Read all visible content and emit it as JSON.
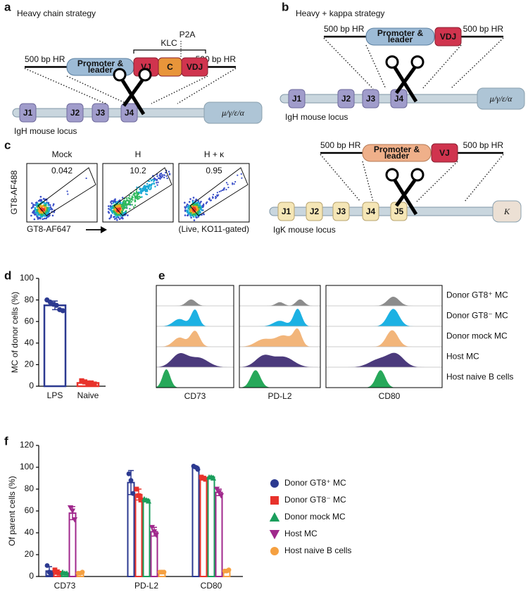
{
  "panel_a": {
    "letter": "a",
    "title": "Heavy chain strategy",
    "p2a": "P2A",
    "klc": "KLC",
    "construct": {
      "hr_left": "500 bp HR",
      "promoter": [
        "Promoter &",
        "leader"
      ],
      "segments": [
        "VJ",
        "C",
        "VDJ"
      ],
      "hr_right": "500 bp HR"
    },
    "locus": {
      "segments": [
        "J1",
        "J2",
        "J3",
        "J4"
      ],
      "constant": "μ/γ/ε/α",
      "label": "IgH mouse locus"
    }
  },
  "panel_b": {
    "letter": "b",
    "title": "Heavy + kappa strategy",
    "heavy": {
      "construct": {
        "hr_left": "500 bp HR",
        "promoter": [
          "Promoter &",
          "leader"
        ],
        "segments": [
          "VDJ"
        ],
        "hr_right": "500 bp HR"
      },
      "locus": {
        "segments": [
          "J1",
          "J2",
          "J3",
          "J4"
        ],
        "constant": "μ/γ/ε/α",
        "label": "IgH mouse locus"
      }
    },
    "kappa": {
      "construct": {
        "hr_left": "500 bp HR",
        "promoter": [
          "Promoter &",
          "leader"
        ],
        "segments": [
          "VJ"
        ],
        "hr_right": "500 bp HR"
      },
      "locus": {
        "segments": [
          "J1",
          "J2",
          "J3",
          "J4",
          "J5"
        ],
        "constant": "K",
        "label": "IgK mouse locus"
      }
    }
  },
  "panel_c": {
    "letter": "c",
    "y_label": "GT8-AF488",
    "x_label": "GT8-AF647",
    "gating": "(Live, KO11-gated)",
    "plots": [
      {
        "title": "Mock",
        "value": "0.042"
      },
      {
        "title": "H",
        "value": "10.2"
      },
      {
        "title": "H + κ",
        "value": "0.95"
      }
    ]
  },
  "panel_e": {
    "letter": "e",
    "columns": [
      "CD73",
      "PD-L2",
      "CD80"
    ],
    "rows": [
      {
        "name": "Donor GT8⁺ MC",
        "color": "#8c8c8c"
      },
      {
        "name": "Donor GT8⁻ MC",
        "color": "#1cb1e3"
      },
      {
        "name": "Donor mock MC",
        "color": "#f2b57a"
      },
      {
        "name": "Host MC",
        "color": "#4b3a7c"
      },
      {
        "name": "Host naive B cells",
        "color": "#27a85a"
      }
    ]
  },
  "chart_data": [
    {
      "type": "bar",
      "label": "d",
      "y_label": "MC of donor cells (%)",
      "categories": [
        "LPS",
        "Naive"
      ],
      "values": [
        75,
        3
      ],
      "errors": [
        4,
        1
      ],
      "colors": [
        "#2b3990",
        "#e8322b"
      ],
      "markers": [
        "circle",
        "square"
      ],
      "points": [
        [
          80,
          78,
          76,
          75,
          71,
          70
        ],
        [
          5,
          4,
          3,
          3,
          2
        ]
      ],
      "ylim": [
        0,
        100
      ],
      "yticks": [
        0,
        20,
        40,
        60,
        80,
        100
      ]
    },
    {
      "type": "grouped-bar",
      "label": "f",
      "y_label": "Of parent cells (%)",
      "categories": [
        "CD73",
        "PD-L2",
        "CD80"
      ],
      "ylim": [
        0,
        120
      ],
      "yticks": [
        0,
        20,
        40,
        60,
        80,
        100,
        120
      ],
      "legend": "right",
      "series": [
        {
          "name": "Donor GT8⁺ MC",
          "color": "#2b3990",
          "marker": "circle",
          "values": [
            5,
            86,
            100
          ],
          "errors": [
            4,
            11,
            1
          ],
          "points": [
            [
              10,
              4,
              2
            ],
            [
              94,
              88,
              76
            ],
            [
              101,
              100,
              98
            ]
          ]
        },
        {
          "name": "Donor GT8⁻ MC",
          "color": "#e8322b",
          "marker": "square",
          "values": [
            4,
            75,
            90
          ],
          "errors": [
            2,
            5,
            1.5
          ],
          "points": [
            [
              6,
              4,
              3
            ],
            [
              80,
              74,
              70
            ],
            [
              91,
              90,
              89
            ]
          ]
        },
        {
          "name": "Donor mock MC",
          "color": "#1a9e5c",
          "marker": "triangle-up",
          "values": [
            3,
            70,
            91
          ],
          "errors": [
            1,
            1,
            1
          ],
          "points": [
            [
              4,
              3,
              3
            ],
            [
              71,
              70,
              69
            ],
            [
              91,
              91,
              90
            ]
          ]
        },
        {
          "name": "Host MC",
          "color": "#a0288c",
          "marker": "triangle-down",
          "values": [
            58,
            41,
            77
          ],
          "errors": [
            6,
            4,
            3
          ],
          "points": [
            [
              63,
              60,
              52
            ],
            [
              45,
              41,
              38
            ],
            [
              80,
              77,
              74
            ]
          ]
        },
        {
          "name": "Host naive B cells",
          "color": "#f5a040",
          "marker": "circle",
          "values": [
            3,
            4,
            5
          ],
          "errors": [
            1,
            0.5,
            1
          ],
          "points": [
            [
              3,
              3,
              4
            ],
            [
              4,
              4,
              4
            ],
            [
              5,
              5,
              6
            ]
          ]
        }
      ]
    }
  ]
}
